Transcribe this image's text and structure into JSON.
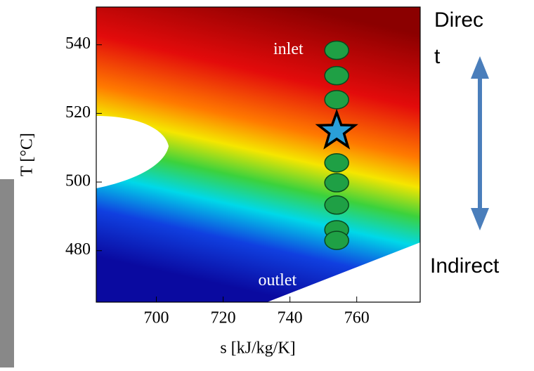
{
  "chart_data": {
    "type": "scatter",
    "xlabel": "s [kJ/kg/K]",
    "ylabel": "T [°C]",
    "xlim": [
      682,
      779
    ],
    "ylim": [
      465,
      551
    ],
    "xticks": [
      700,
      720,
      740,
      760
    ],
    "yticks": [
      480,
      500,
      520,
      540
    ],
    "points": {
      "x": [
        754,
        754,
        754,
        754,
        754,
        754,
        754,
        754
      ],
      "y": [
        538.4,
        531,
        524,
        505.6,
        499.8,
        493.3,
        486.1,
        483
      ],
      "color": "#1fa045"
    },
    "star": {
      "x": 754,
      "y": 514.8,
      "color": "#2a9fd8"
    },
    "annotations": [
      {
        "text": "inlet",
        "x": 744,
        "y": 538.4
      },
      {
        "text": "outlet",
        "x": 742,
        "y": 471
      }
    ],
    "arrow_labels": {
      "top": [
        "Direc",
        "t"
      ],
      "bottom": "Indirect"
    }
  }
}
